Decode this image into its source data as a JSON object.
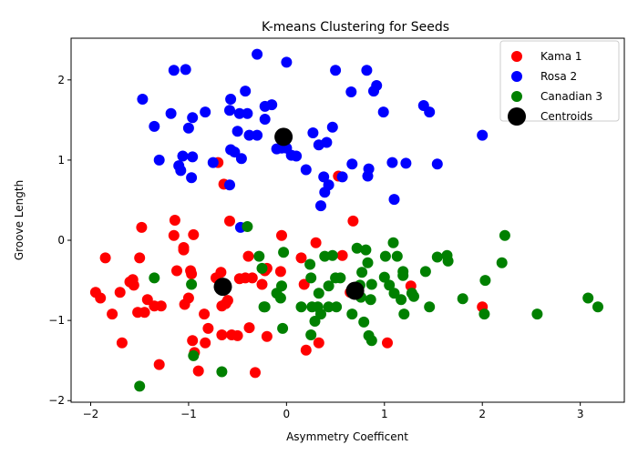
{
  "chart_data": {
    "type": "scatter",
    "title": "K-means Clustering for Seeds",
    "xlabel": "Asymmetry Coefficent",
    "ylabel": "Groove Length",
    "xlim": [
      -2.2,
      3.45
    ],
    "ylim": [
      -2.02,
      2.52
    ],
    "xticks": [
      -2,
      -1,
      0,
      1,
      2,
      3
    ],
    "yticks": [
      -2,
      -1,
      0,
      1,
      2
    ],
    "grid": false,
    "legend_position": "top-right",
    "series": [
      {
        "name": "Kama 1",
        "color": "#ff0000",
        "points": [
          [
            -1.95,
            -0.65
          ],
          [
            -1.9,
            -0.72
          ],
          [
            -1.85,
            -0.22
          ],
          [
            -1.78,
            -0.92
          ],
          [
            -1.7,
            -0.65
          ],
          [
            -1.68,
            -1.28
          ],
          [
            -1.6,
            -0.52
          ],
          [
            -1.57,
            -0.49
          ],
          [
            -1.56,
            -0.56
          ],
          [
            -1.52,
            -0.9
          ],
          [
            -1.5,
            -0.22
          ],
          [
            -1.48,
            0.16
          ],
          [
            -1.45,
            -0.9
          ],
          [
            -1.42,
            -0.74
          ],
          [
            -1.35,
            -0.82
          ],
          [
            -1.3,
            -1.55
          ],
          [
            -1.28,
            -0.82
          ],
          [
            -1.15,
            0.06
          ],
          [
            -1.14,
            0.25
          ],
          [
            -1.12,
            -0.38
          ],
          [
            -1.05,
            -0.12
          ],
          [
            -1.05,
            -0.09
          ],
          [
            -1.04,
            -0.8
          ],
          [
            -1.0,
            -0.72
          ],
          [
            -0.98,
            -0.38
          ],
          [
            -0.97,
            -0.42
          ],
          [
            -0.96,
            -1.25
          ],
          [
            -0.95,
            0.07
          ],
          [
            -0.94,
            -1.4
          ],
          [
            -0.9,
            -1.63
          ],
          [
            -0.84,
            -0.92
          ],
          [
            -0.83,
            -1.28
          ],
          [
            -0.8,
            -1.1
          ],
          [
            -0.72,
            -0.47
          ],
          [
            -0.7,
            0.97
          ],
          [
            -0.67,
            -0.4
          ],
          [
            -0.66,
            -0.82
          ],
          [
            -0.66,
            -1.18
          ],
          [
            -0.64,
            0.7
          ],
          [
            -0.62,
            -0.79
          ],
          [
            -0.6,
            -0.75
          ],
          [
            -0.58,
            0.24
          ],
          [
            -0.56,
            -1.18
          ],
          [
            -0.5,
            -1.19
          ],
          [
            -0.48,
            -0.48
          ],
          [
            -0.42,
            -0.47
          ],
          [
            -0.39,
            -0.2
          ],
          [
            -0.38,
            -1.09
          ],
          [
            -0.35,
            -0.47
          ],
          [
            -0.32,
            -1.65
          ],
          [
            -0.25,
            -0.55
          ],
          [
            -0.22,
            -0.38
          ],
          [
            -0.2,
            -1.2
          ],
          [
            -0.2,
            -0.35
          ],
          [
            -0.05,
            0.06
          ],
          [
            -0.06,
            -0.39
          ],
          [
            0.15,
            -0.22
          ],
          [
            0.18,
            -0.55
          ],
          [
            0.2,
            -1.37
          ],
          [
            0.3,
            -0.03
          ],
          [
            0.33,
            -1.28
          ],
          [
            0.53,
            0.8
          ],
          [
            0.57,
            -0.19
          ],
          [
            0.65,
            -0.65
          ],
          [
            0.68,
            0.24
          ],
          [
            1.03,
            -1.28
          ],
          [
            1.27,
            -0.57
          ],
          [
            2.0,
            -0.83
          ]
        ]
      },
      {
        "name": "Rosa 2",
        "color": "#0000ff",
        "points": [
          [
            -1.47,
            1.76
          ],
          [
            -1.35,
            1.42
          ],
          [
            -1.3,
            1.0
          ],
          [
            -1.18,
            1.58
          ],
          [
            -1.15,
            2.12
          ],
          [
            -1.1,
            0.93
          ],
          [
            -1.08,
            0.87
          ],
          [
            -1.06,
            1.05
          ],
          [
            -1.03,
            2.13
          ],
          [
            -1.0,
            1.4
          ],
          [
            -0.97,
            0.78
          ],
          [
            -0.96,
            1.53
          ],
          [
            -0.96,
            1.04
          ],
          [
            -0.83,
            1.6
          ],
          [
            -0.75,
            0.97
          ],
          [
            -0.58,
            0.69
          ],
          [
            -0.58,
            1.62
          ],
          [
            -0.57,
            1.13
          ],
          [
            -0.57,
            1.76
          ],
          [
            -0.53,
            1.1
          ],
          [
            -0.5,
            1.36
          ],
          [
            -0.48,
            1.58
          ],
          [
            -0.47,
            0.16
          ],
          [
            -0.46,
            1.02
          ],
          [
            -0.42,
            1.86
          ],
          [
            -0.4,
            1.58
          ],
          [
            -0.38,
            1.31
          ],
          [
            -0.3,
            2.32
          ],
          [
            -0.3,
            1.31
          ],
          [
            -0.22,
            1.67
          ],
          [
            -0.22,
            1.51
          ],
          [
            -0.15,
            1.69
          ],
          [
            -0.1,
            1.14
          ],
          [
            -0.05,
            1.15
          ],
          [
            0.0,
            2.22
          ],
          [
            0.0,
            1.15
          ],
          [
            0.05,
            1.06
          ],
          [
            0.1,
            1.05
          ],
          [
            0.2,
            0.88
          ],
          [
            0.27,
            1.34
          ],
          [
            0.33,
            1.19
          ],
          [
            0.35,
            0.43
          ],
          [
            0.38,
            0.79
          ],
          [
            0.39,
            0.6
          ],
          [
            0.41,
            1.22
          ],
          [
            0.43,
            0.69
          ],
          [
            0.47,
            1.41
          ],
          [
            0.5,
            2.12
          ],
          [
            0.57,
            0.79
          ],
          [
            0.66,
            1.85
          ],
          [
            0.67,
            0.95
          ],
          [
            0.82,
            2.12
          ],
          [
            0.83,
            0.8
          ],
          [
            0.84,
            0.89
          ],
          [
            0.89,
            1.86
          ],
          [
            0.92,
            1.93
          ],
          [
            0.99,
            1.6
          ],
          [
            1.08,
            0.97
          ],
          [
            1.1,
            0.51
          ],
          [
            1.22,
            0.96
          ],
          [
            1.4,
            1.68
          ],
          [
            1.46,
            1.6
          ],
          [
            1.54,
            0.95
          ],
          [
            2.0,
            1.31
          ]
        ]
      },
      {
        "name": "Canadian 3",
        "color": "#008000",
        "points": [
          [
            -1.5,
            -1.82
          ],
          [
            -1.35,
            -0.47
          ],
          [
            -0.97,
            -0.55
          ],
          [
            -0.95,
            -1.44
          ],
          [
            -0.66,
            -1.64
          ],
          [
            -0.4,
            0.17
          ],
          [
            -0.28,
            -0.2
          ],
          [
            -0.25,
            -0.35
          ],
          [
            -0.23,
            -0.83
          ],
          [
            -0.22,
            -0.83
          ],
          [
            -0.1,
            -0.66
          ],
          [
            -0.06,
            -0.72
          ],
          [
            -0.05,
            -0.57
          ],
          [
            -0.04,
            -1.1
          ],
          [
            -0.03,
            -0.15
          ],
          [
            0.15,
            -0.83
          ],
          [
            0.24,
            -0.3
          ],
          [
            0.25,
            -0.47
          ],
          [
            0.26,
            -0.83
          ],
          [
            0.25,
            -1.18
          ],
          [
            0.29,
            -1.01
          ],
          [
            0.32,
            -0.83
          ],
          [
            0.33,
            -0.66
          ],
          [
            0.35,
            -0.92
          ],
          [
            0.39,
            -0.2
          ],
          [
            0.43,
            -0.83
          ],
          [
            0.43,
            -0.57
          ],
          [
            0.47,
            -0.19
          ],
          [
            0.5,
            -0.47
          ],
          [
            0.51,
            -0.83
          ],
          [
            0.55,
            -0.47
          ],
          [
            0.67,
            -0.92
          ],
          [
            0.72,
            -0.1
          ],
          [
            0.75,
            -0.56
          ],
          [
            0.76,
            -0.71
          ],
          [
            0.77,
            -0.4
          ],
          [
            0.79,
            -1.02
          ],
          [
            0.81,
            -0.12
          ],
          [
            0.83,
            -0.28
          ],
          [
            0.84,
            -1.19
          ],
          [
            0.86,
            -0.74
          ],
          [
            0.87,
            -0.55
          ],
          [
            0.87,
            -1.25
          ],
          [
            1.0,
            -0.46
          ],
          [
            1.01,
            -0.2
          ],
          [
            1.05,
            -0.56
          ],
          [
            1.09,
            -0.03
          ],
          [
            1.1,
            -0.66
          ],
          [
            1.13,
            -0.2
          ],
          [
            1.17,
            -0.74
          ],
          [
            1.19,
            -0.44
          ],
          [
            1.19,
            -0.39
          ],
          [
            1.2,
            -0.92
          ],
          [
            1.28,
            -0.66
          ],
          [
            1.3,
            -0.7
          ],
          [
            1.42,
            -0.39
          ],
          [
            1.46,
            -0.83
          ],
          [
            1.54,
            -0.21
          ],
          [
            1.64,
            -0.19
          ],
          [
            1.65,
            -0.26
          ],
          [
            1.8,
            -0.73
          ],
          [
            2.02,
            -0.92
          ],
          [
            2.03,
            -0.5
          ],
          [
            2.2,
            -0.28
          ],
          [
            2.23,
            0.06
          ],
          [
            2.56,
            -0.92
          ],
          [
            3.08,
            -0.72
          ],
          [
            3.18,
            -0.83
          ]
        ]
      },
      {
        "name": "Centroids",
        "color": "#000000",
        "points": [
          [
            -0.65,
            -0.58
          ],
          [
            -0.03,
            1.29
          ],
          [
            0.7,
            -0.63
          ]
        ]
      }
    ]
  }
}
